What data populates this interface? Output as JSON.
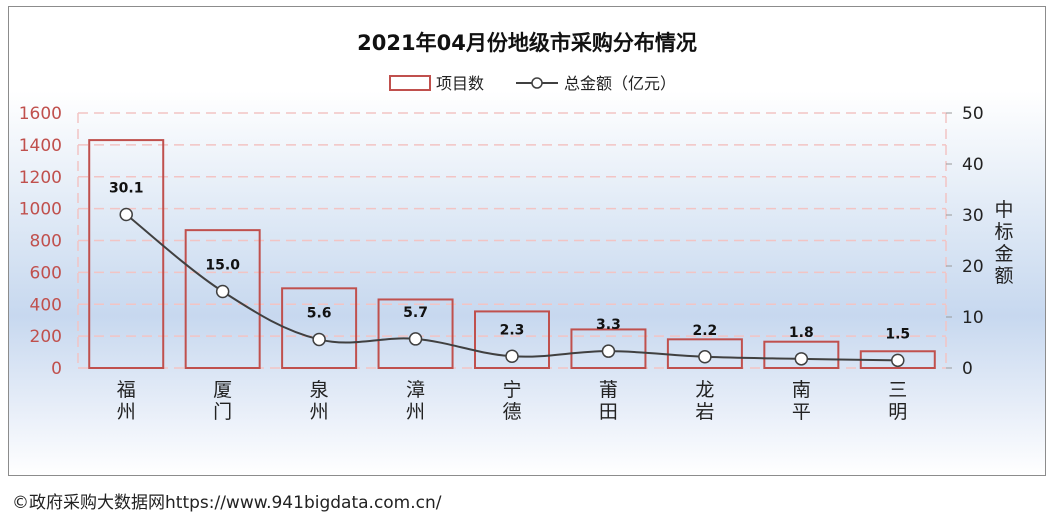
{
  "chart_data": {
    "type": "bar",
    "title": "2021年04月份地级市采购分布情况",
    "categories": [
      "福州",
      "厦门",
      "泉州",
      "漳州",
      "宁德",
      "莆田",
      "龙岩",
      "南平",
      "三明"
    ],
    "series": [
      {
        "name": "项目数",
        "kind": "bar",
        "axis": "left",
        "values": [
          1430,
          865,
          500,
          430,
          355,
          242,
          180,
          165,
          105
        ]
      },
      {
        "name": "总金额（亿元）",
        "kind": "line",
        "axis": "right",
        "values": [
          30.1,
          15.0,
          5.6,
          5.7,
          2.3,
          3.3,
          2.2,
          1.8,
          1.5
        ]
      }
    ],
    "data_labels": [
      "30.1",
      "15.0",
      "5.6",
      "5.7",
      "2.3",
      "3.3",
      "2.2",
      "1.8",
      "1.5"
    ],
    "y_left": {
      "min": 0,
      "max": 1600,
      "ticks": [
        "0",
        "200",
        "400",
        "600",
        "800",
        "1000",
        "1200",
        "1400",
        "1600"
      ]
    },
    "y_right": {
      "min": 0,
      "max": 50,
      "label": "中标金额",
      "ticks": [
        "0",
        "10",
        "20",
        "30",
        "40",
        "50"
      ]
    },
    "grid": true,
    "legend_position": "top-center",
    "colors": {
      "bar_stroke": "#c0504d",
      "line": "#404040",
      "left_axis_text": "#c0504d",
      "grid": "#f2c4c4"
    }
  },
  "footer": {
    "text": "©政府采购大数据网https://www.941bigdata.com.cn/"
  }
}
